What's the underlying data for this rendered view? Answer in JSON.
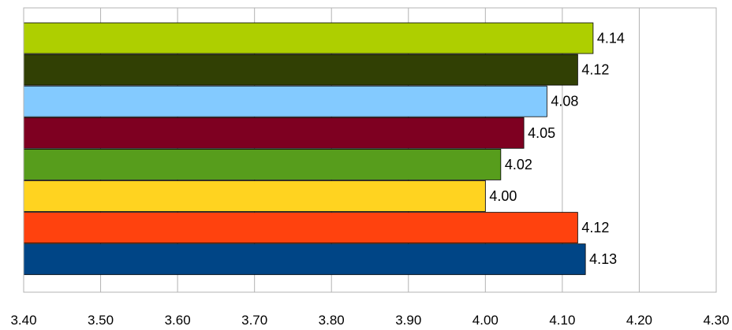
{
  "chart_data": {
    "type": "bar",
    "orientation": "horizontal",
    "title": "",
    "xlabel": "",
    "ylabel": "",
    "xlim": [
      3.4,
      4.3
    ],
    "x_ticks": [
      "3.40",
      "3.50",
      "3.60",
      "3.70",
      "3.80",
      "3.90",
      "4.00",
      "4.10",
      "4.20",
      "4.30"
    ],
    "grid": true,
    "legend": "none",
    "bars": [
      {
        "value": 4.14,
        "label": "4.14",
        "color": "#AECF00"
      },
      {
        "value": 4.12,
        "label": "4.12",
        "color": "#314004"
      },
      {
        "value": 4.08,
        "label": "4.08",
        "color": "#83CAFF"
      },
      {
        "value": 4.05,
        "label": "4.05",
        "color": "#7E0021"
      },
      {
        "value": 4.02,
        "label": "4.02",
        "color": "#579D1C"
      },
      {
        "value": 4.0,
        "label": "4.00",
        "color": "#FFD320"
      },
      {
        "value": 4.12,
        "label": "4.12",
        "color": "#FF420E"
      },
      {
        "value": 4.13,
        "label": "4.13",
        "color": "#004586"
      }
    ]
  }
}
